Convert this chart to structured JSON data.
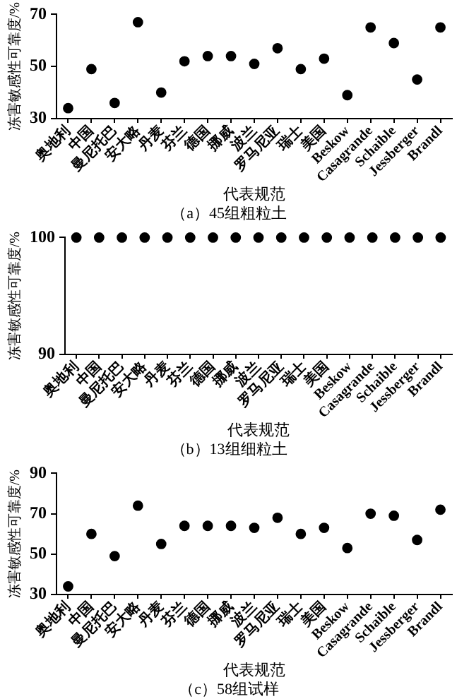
{
  "chart_data": [
    {
      "type": "scatter",
      "title": "（a）45组粗粒土",
      "xlabel": "代表规范",
      "ylabel": "冻害敏感性可靠度/%",
      "categories": [
        "奥地利",
        "中国",
        "曼尼托巴",
        "安大略",
        "丹麦",
        "芬兰",
        "德国",
        "挪威",
        "波兰",
        "罗马尼亚",
        "瑞士",
        "美国",
        "Beskow",
        "Casagrande",
        "Schaible",
        "Jessberger",
        "Brandl"
      ],
      "series": [
        {
          "color": "#000000",
          "values": [
            34,
            49,
            36,
            67,
            40,
            52,
            54,
            54,
            51,
            57,
            49,
            53,
            39,
            65,
            59,
            45,
            65
          ]
        }
      ],
      "ylim": [
        30,
        70
      ],
      "yticks": [
        30,
        50,
        70
      ],
      "grid": false,
      "legend": false,
      "marker": "circle"
    },
    {
      "type": "scatter",
      "title": "（b）13组细粒土",
      "xlabel": "代表规范",
      "ylabel": "冻害敏感性可靠度/%",
      "categories": [
        "奥地利",
        "中国",
        "曼尼托巴",
        "安大略",
        "丹麦",
        "芬兰",
        "德国",
        "挪威",
        "波兰",
        "罗马尼亚",
        "瑞士",
        "美国",
        "Beskow",
        "Casagrande",
        "Schaible",
        "Jessberger",
        "Brandl"
      ],
      "series": [
        {
          "color": "#000000",
          "values": [
            100,
            100,
            100,
            100,
            100,
            100,
            100,
            100,
            100,
            100,
            100,
            100,
            100,
            100,
            100,
            100,
            100
          ]
        }
      ],
      "ylim": [
        90,
        100
      ],
      "yticks": [
        90,
        100
      ],
      "grid": false,
      "legend": false,
      "marker": "circle"
    },
    {
      "type": "scatter",
      "title": "（c）58组试样",
      "xlabel": "代表规范",
      "ylabel": "冻害敏感性可靠度/%",
      "categories": [
        "奥地利",
        "中国",
        "曼尼托巴",
        "安大略",
        "丹麦",
        "芬兰",
        "德国",
        "挪威",
        "波兰",
        "罗马尼亚",
        "瑞士",
        "美国",
        "Beskow",
        "Casagrande",
        "Schaible",
        "Jessberger",
        "Brandl"
      ],
      "series": [
        {
          "color": "#000000",
          "values": [
            34,
            60,
            49,
            74,
            55,
            64,
            64,
            64,
            63,
            68,
            60,
            63,
            53,
            70,
            69,
            57,
            72
          ]
        }
      ],
      "ylim": [
        30,
        90
      ],
      "yticks": [
        30,
        50,
        70,
        90
      ],
      "grid": false,
      "legend": false,
      "marker": "circle"
    }
  ]
}
